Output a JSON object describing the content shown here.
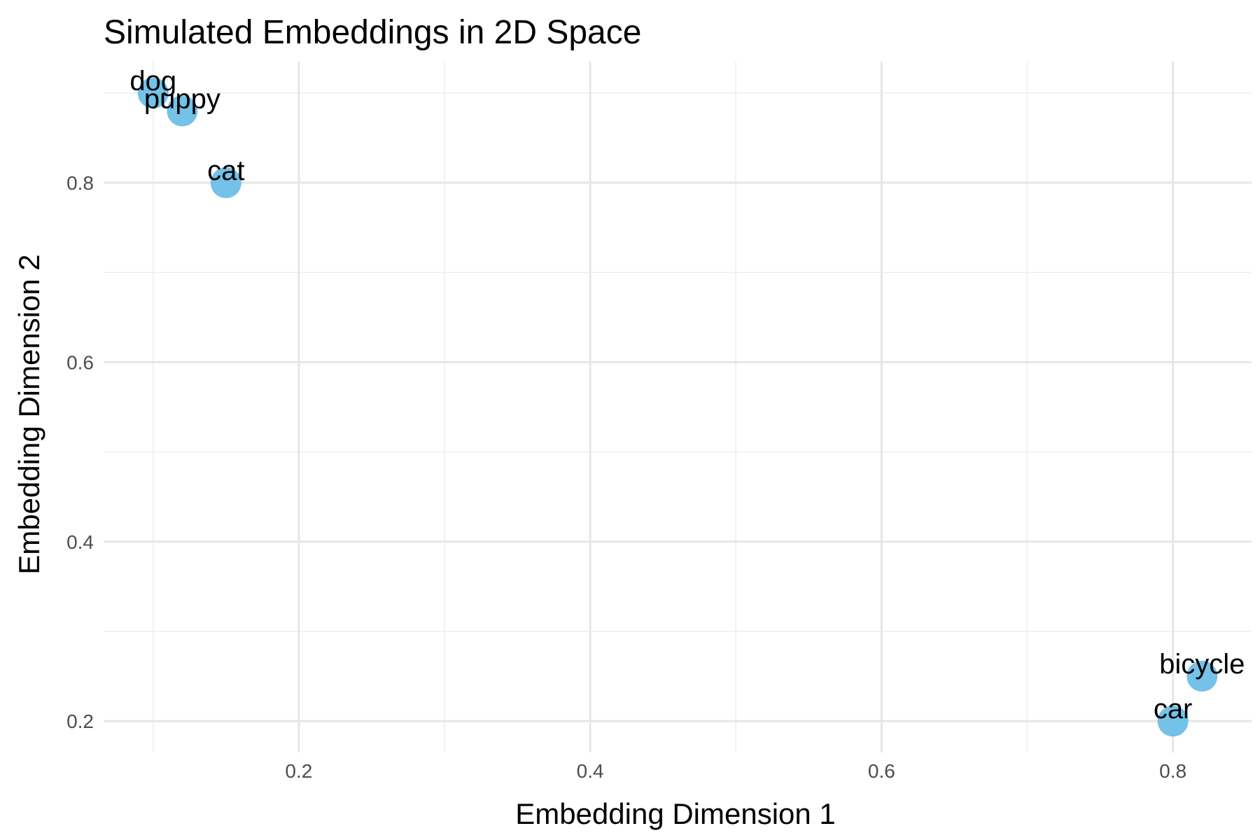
{
  "chart_data": {
    "type": "scatter",
    "title": "Simulated Embeddings in 2D Space",
    "xlabel": "Embedding Dimension 1",
    "ylabel": "Embedding Dimension 2",
    "xlim": [
      0.066,
      0.854
    ],
    "ylim": [
      0.165,
      0.935
    ],
    "x_ticks": [
      0.2,
      0.4,
      0.6,
      0.8
    ],
    "x_tick_labels": [
      "0.2",
      "0.4",
      "0.6",
      "0.8"
    ],
    "y_ticks": [
      0.2,
      0.4,
      0.6,
      0.8
    ],
    "y_tick_labels": [
      "0.2",
      "0.4",
      "0.6",
      "0.8"
    ],
    "x_minor": [
      0.1,
      0.3,
      0.5,
      0.7
    ],
    "y_minor": [
      0.3,
      0.5,
      0.7,
      0.9
    ],
    "grid": true,
    "point_color": "#74c2e8",
    "points": [
      {
        "label": "dog",
        "x": 0.1,
        "y": 0.9
      },
      {
        "label": "puppy",
        "x": 0.12,
        "y": 0.88
      },
      {
        "label": "cat",
        "x": 0.15,
        "y": 0.8
      },
      {
        "label": "car",
        "x": 0.8,
        "y": 0.2
      },
      {
        "label": "bicycle",
        "x": 0.82,
        "y": 0.25
      }
    ]
  }
}
